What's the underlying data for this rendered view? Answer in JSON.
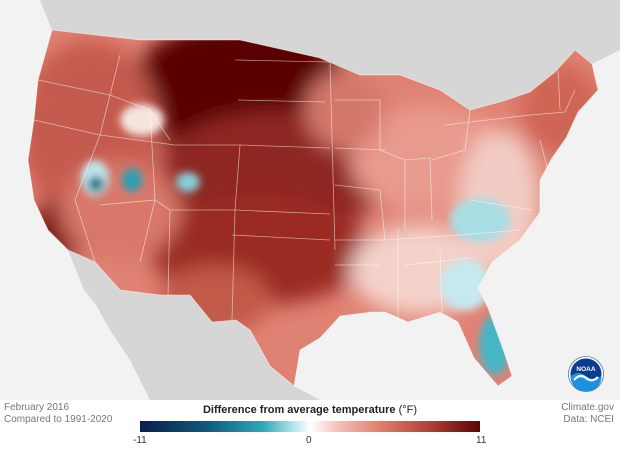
{
  "map": {
    "region": "Contiguous United States",
    "colors": {
      "background": "#f2f2f2",
      "neighbor_land": "#d6d6d6",
      "state_borders": "#ffffff",
      "warm_extreme": "#5c0404",
      "cold_extreme": "#0c1d4e"
    }
  },
  "meta": {
    "date": "February 2016",
    "baseline": "Compared to 1991-2020",
    "credit": "Climate.gov",
    "source": "Data: NCEI"
  },
  "legend": {
    "title": "Difference from average temperature",
    "unit": "(°F)",
    "min": "-11",
    "mid": "0",
    "max": "11"
  },
  "logo": {
    "name": "NOAA",
    "icon": "noaa-logo-icon"
  }
}
